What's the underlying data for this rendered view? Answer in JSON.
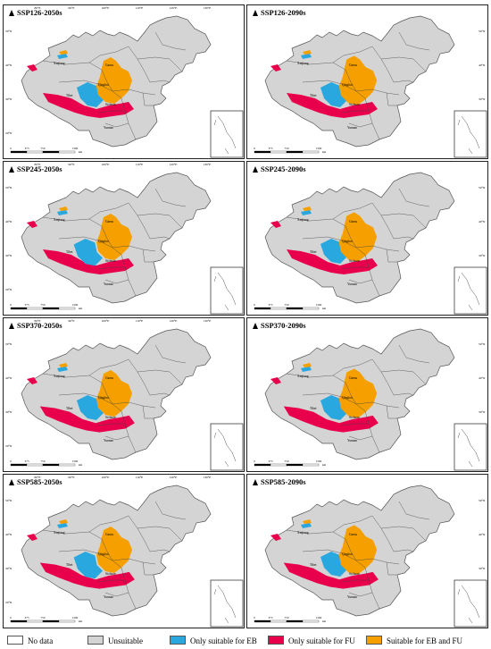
{
  "panels": [
    {
      "title": "SSP126-2050s",
      "variant": 0
    },
    {
      "title": "SSP126-2090s",
      "variant": 1
    },
    {
      "title": "SSP245-2050s",
      "variant": 2
    },
    {
      "title": "SSP245-2090s",
      "variant": 3
    },
    {
      "title": "SSP370-2050s",
      "variant": 4
    },
    {
      "title": "SSP370-2090s",
      "variant": 5
    },
    {
      "title": "SSP585-2050s",
      "variant": 6
    },
    {
      "title": "SSP585-2090s",
      "variant": 7
    }
  ],
  "map_labels": {
    "lon_ticks": [
      "80°E",
      "90°E",
      "100°E",
      "110°E",
      "120°E",
      "130°E"
    ],
    "lat_ticks": [
      "50°N",
      "40°N",
      "30°N",
      "20°N"
    ],
    "places": [
      "Xinjiang",
      "Gansu",
      "Qinghai",
      "Tibet",
      "Sichuan",
      "Yunnan"
    ],
    "scale_labels": [
      "0",
      "375",
      "750",
      "1500"
    ],
    "scale_unit": "km"
  },
  "legend": [
    {
      "label": "No data",
      "color": "#ffffff"
    },
    {
      "label": "Unsuitable",
      "color": "#d4d4d4"
    },
    {
      "label": "Only suitable for EB",
      "color": "#29a8e0"
    },
    {
      "label": "Only suitable for FU",
      "color": "#e8004c"
    },
    {
      "label": "Suitable for EB and FU",
      "color": "#f5a000"
    }
  ]
}
